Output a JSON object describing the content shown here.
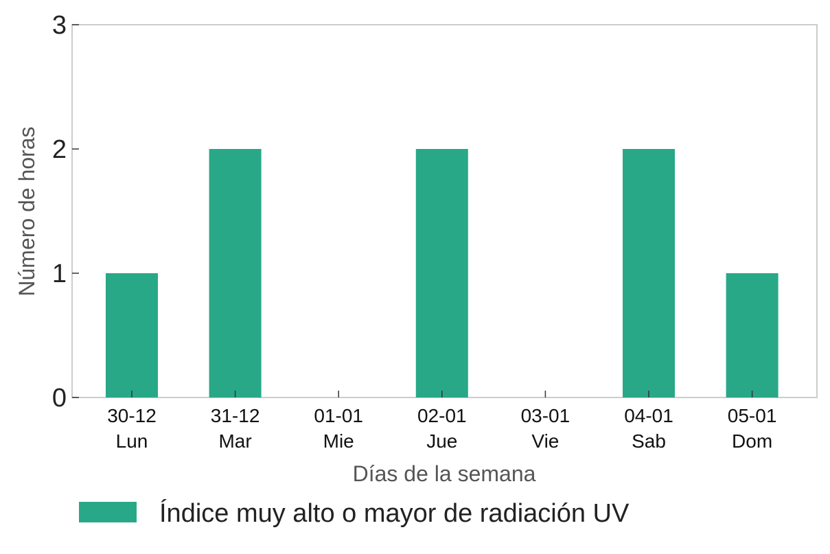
{
  "chart_data": {
    "type": "bar",
    "categories": [
      {
        "date": "30-12",
        "day": "Lun"
      },
      {
        "date": "31-12",
        "day": "Mar"
      },
      {
        "date": "01-01",
        "day": "Mie"
      },
      {
        "date": "02-01",
        "day": "Jue"
      },
      {
        "date": "03-01",
        "day": "Vie"
      },
      {
        "date": "04-01",
        "day": "Sab"
      },
      {
        "date": "05-01",
        "day": "Dom"
      }
    ],
    "series": [
      {
        "name": "Índice muy alto o mayor de radiación UV",
        "color": "#28a887",
        "values": [
          1,
          2,
          0,
          2,
          0,
          2,
          1
        ]
      }
    ],
    "xlabel": "Días de la semana",
    "ylabel": "Número de horas",
    "ylim": [
      0,
      3
    ],
    "yticks": [
      0,
      1,
      2,
      3
    ],
    "grid": false,
    "legend_position": "bottom"
  }
}
